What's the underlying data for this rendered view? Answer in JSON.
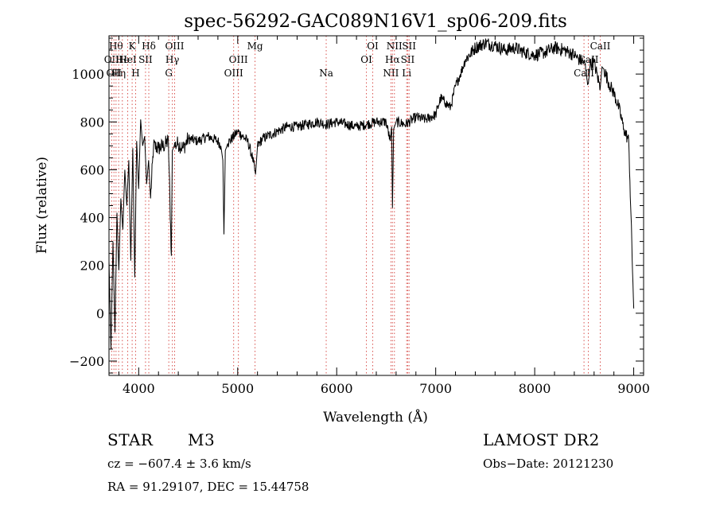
{
  "chart_data": {
    "type": "line",
    "title": "spec-56292-GAC089N16V1_sp06-209.fits",
    "xlabel": "Wavelength (Å)",
    "ylabel": "Flux (relative)",
    "xlim": [
      3700,
      9100
    ],
    "ylim": [
      -260,
      1160
    ],
    "xticks": [
      4000,
      5000,
      6000,
      7000,
      8000,
      9000
    ],
    "yticks": [
      -200,
      0,
      200,
      400,
      600,
      800,
      1000
    ],
    "series": [
      {
        "x": [
          3700,
          3720,
          3740,
          3760,
          3780,
          3800,
          3820,
          3840,
          3860,
          3880,
          3900,
          3920,
          3940,
          3960,
          3980,
          4000,
          4020,
          4040,
          4060,
          4080,
          4100,
          4120,
          4150,
          4200,
          4250,
          4300,
          4330,
          4340,
          4360,
          4400,
          4450,
          4500,
          4600,
          4700,
          4800,
          4830,
          4850,
          4861,
          4875,
          4900,
          5000,
          5100,
          5150,
          5180,
          5200,
          5250,
          5300,
          5400,
          5500,
          5600,
          5700,
          5800,
          5900,
          6000,
          6100,
          6200,
          6300,
          6400,
          6500,
          6540,
          6555,
          6563,
          6575,
          6600,
          6700,
          6800,
          6900,
          7000,
          7050,
          7100,
          7150,
          7200,
          7250,
          7300,
          7400,
          7500,
          7600,
          7700,
          7800,
          7900,
          8000,
          8100,
          8200,
          8300,
          8400,
          8450,
          8500,
          8542,
          8560,
          8600,
          8662,
          8680,
          8700,
          8750,
          8800,
          8850,
          8900,
          8950,
          9000
        ],
        "y": [
          220,
          -150,
          300,
          -80,
          420,
          180,
          480,
          350,
          600,
          450,
          640,
          220,
          690,
          150,
          720,
          520,
          810,
          700,
          740,
          540,
          640,
          480,
          700,
          690,
          700,
          720,
          240,
          680,
          700,
          710,
          690,
          730,
          720,
          740,
          720,
          700,
          640,
          330,
          680,
          710,
          760,
          720,
          650,
          580,
          700,
          730,
          740,
          760,
          780,
          780,
          790,
          800,
          790,
          800,
          790,
          780,
          790,
          800,
          800,
          720,
          780,
          440,
          770,
          800,
          790,
          820,
          810,
          830,
          900,
          880,
          860,
          950,
          1000,
          1060,
          1110,
          1130,
          1120,
          1100,
          1110,
          1090,
          1080,
          1090,
          1110,
          1100,
          1080,
          1060,
          1050,
          960,
          1040,
          1050,
          940,
          1030,
          1020,
          960,
          920,
          860,
          770,
          720,
          20
        ]
      }
    ],
    "lines": [
      {
        "x": 3727,
        "labels": [
          "OII"
        ],
        "row": 1
      },
      {
        "x": 3750,
        "labels": [
          "OII"
        ],
        "row": 2
      },
      {
        "x": 3771,
        "labels": [
          "Hθ"
        ],
        "row": 0
      },
      {
        "x": 3798,
        "labels": [
          "Hη"
        ],
        "row": 2
      },
      {
        "x": 3835,
        "labels": [
          "He"
        ],
        "row": 1
      },
      {
        "x": 3889,
        "labels": [
          "HeI"
        ],
        "row": 1
      },
      {
        "x": 3934,
        "labels": [
          "K"
        ],
        "row": 0
      },
      {
        "x": 3969,
        "labels": [
          "H"
        ],
        "row": 2
      },
      {
        "x": 4069,
        "labels": [
          "SII"
        ],
        "row": 1
      },
      {
        "x": 4102,
        "labels": [
          "Hδ"
        ],
        "row": 0
      },
      {
        "x": 4304,
        "labels": [
          "G"
        ],
        "row": 2
      },
      {
        "x": 4340,
        "labels": [
          "Hγ"
        ],
        "row": 1
      },
      {
        "x": 4363,
        "labels": [
          "OIII"
        ],
        "row": 0
      },
      {
        "x": 4959,
        "labels": [
          "OIII"
        ],
        "row": 2
      },
      {
        "x": 5007,
        "labels": [
          "OIII"
        ],
        "row": 1
      },
      {
        "x": 5175,
        "labels": [
          "Mg"
        ],
        "row": 0
      },
      {
        "x": 5894,
        "labels": [
          "Na"
        ],
        "row": 2
      },
      {
        "x": 6300,
        "labels": [
          "OI"
        ],
        "row": 1
      },
      {
        "x": 6364,
        "labels": [
          "OI"
        ],
        "row": 0
      },
      {
        "x": 6548,
        "labels": [
          "NII"
        ],
        "row": 2
      },
      {
        "x": 6563,
        "labels": [
          "Hα"
        ],
        "row": 1
      },
      {
        "x": 6583,
        "labels": [
          "NII"
        ],
        "row": 0
      },
      {
        "x": 6707,
        "labels": [
          "Li"
        ],
        "row": 2
      },
      {
        "x": 6717,
        "labels": [
          "SII"
        ],
        "row": 1
      },
      {
        "x": 6731,
        "labels": [
          "SII"
        ],
        "row": 0
      },
      {
        "x": 8498,
        "labels": [
          "CaII"
        ],
        "row": 2
      },
      {
        "x": 8542,
        "labels": [
          "CaII"
        ],
        "row": 1
      },
      {
        "x": 8662,
        "labels": [
          "CaII"
        ],
        "row": 0
      }
    ]
  },
  "info": {
    "class_label": "STAR",
    "subclass": "M3",
    "survey": "LAMOST DR2",
    "cz": "cz = −607.4 ± 3.6 km/s",
    "obs_date": "Obs−Date: 20121230",
    "coords": "RA =  91.29107, DEC =  15.44758"
  }
}
